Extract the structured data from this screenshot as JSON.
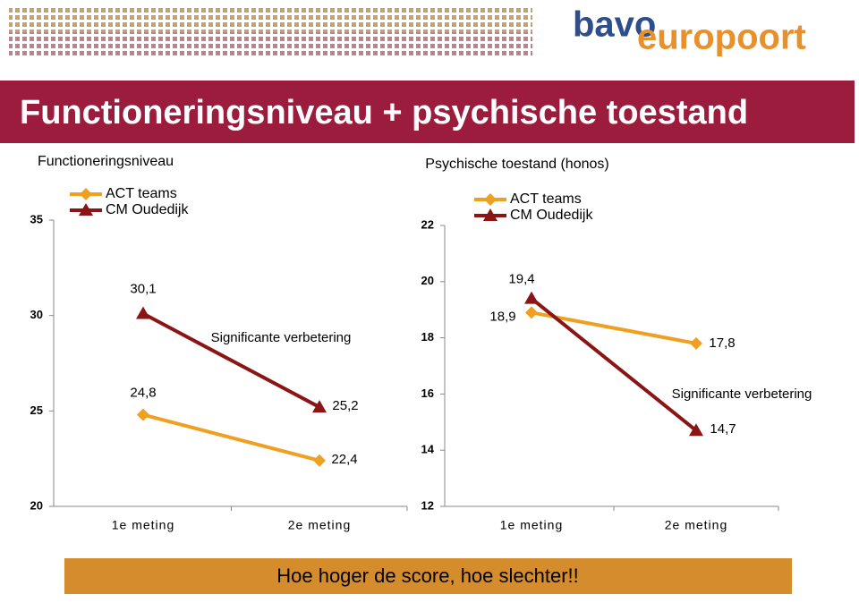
{
  "logo": {
    "top": "bavo",
    "bottom": "europoort"
  },
  "title": "Functioneringsniveau + psychische toestand",
  "footer": "Hoe hoger de score, hoe slechter!!",
  "chart_data": [
    {
      "type": "line",
      "title": "Functioneringsniveau",
      "categories": [
        "1e meting",
        "2e meting"
      ],
      "series": [
        {
          "name": "ACT teams",
          "color": "#f0a020",
          "marker": "diamond",
          "values": [
            24.8,
            22.4
          ],
          "value_labels": [
            "24,8",
            "22,4"
          ]
        },
        {
          "name": "CM Oudedijk",
          "color": "#8b1414",
          "marker": "triangle",
          "values": [
            30.1,
            25.2
          ],
          "value_labels": [
            "30,1",
            "25,2"
          ]
        }
      ],
      "ylim": [
        20,
        35
      ],
      "yticks": [
        20,
        25,
        30,
        35
      ],
      "annotation": "Significante verbetering"
    },
    {
      "type": "line",
      "title": "Psychische toestand (honos)",
      "categories": [
        "1e meting",
        "2e meting"
      ],
      "series": [
        {
          "name": "ACT teams",
          "color": "#f0a020",
          "marker": "diamond",
          "values": [
            18.9,
            17.8
          ],
          "value_labels": [
            "18,9",
            "17,8"
          ]
        },
        {
          "name": "CM Oudedijk",
          "color": "#8b1414",
          "marker": "triangle",
          "values": [
            19.4,
            14.7
          ],
          "value_labels": [
            "19,4",
            "14,7"
          ]
        }
      ],
      "ylim": [
        12,
        22
      ],
      "yticks": [
        12,
        14,
        16,
        18,
        20,
        22
      ],
      "annotation": "Significante verbetering"
    }
  ]
}
